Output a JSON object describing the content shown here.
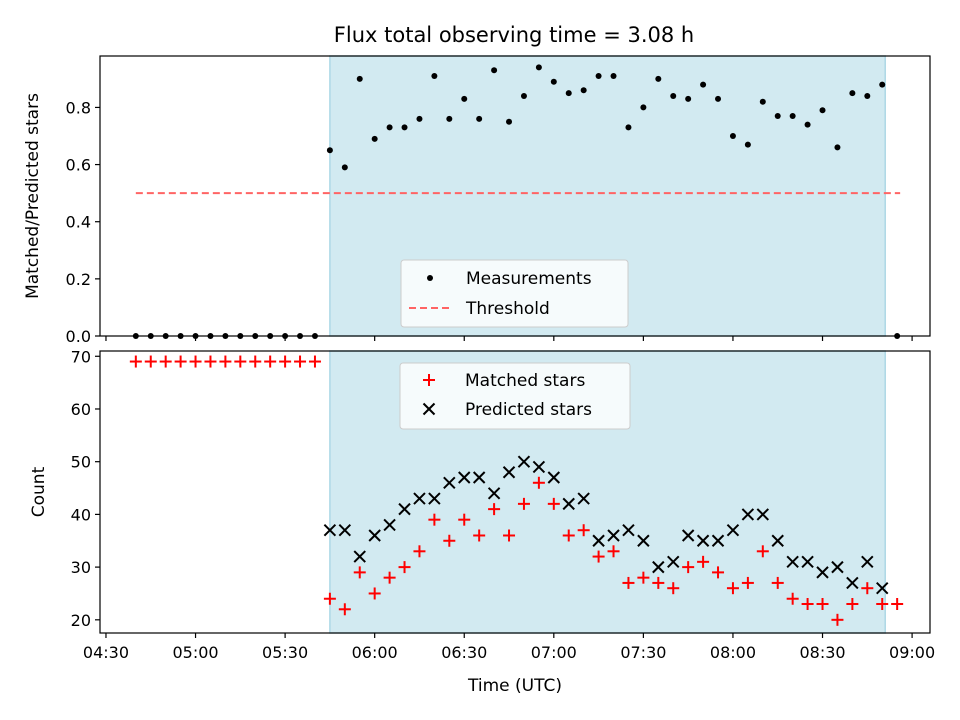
{
  "title": "Flux total observing time = 3.08 h",
  "colors": {
    "band": "#add8e6",
    "measurements": "#000000",
    "threshold": "#ff6464",
    "matched": "#ff0000",
    "predicted": "#000000"
  },
  "chart_data": [
    {
      "type": "scatter",
      "ylabel": "Matched/Predicted stars",
      "ylim": [
        0,
        0.98
      ],
      "yticks": [
        "0.0",
        "0.2",
        "0.4",
        "0.6",
        "0.8"
      ],
      "ytick_values": [
        0,
        0.2,
        0.4,
        0.6,
        0.8
      ],
      "xlim": [
        "04:28",
        "09:06"
      ],
      "highlight_band": [
        "05:45",
        "08:51"
      ],
      "legend": {
        "placement": "lower center",
        "entries": [
          "Measurements",
          "Threshold"
        ]
      },
      "threshold": {
        "name": "Threshold",
        "y": 0.5,
        "x_range": [
          "04:40",
          "08:56"
        ],
        "style": "dashed"
      },
      "series": [
        {
          "name": "Measurements",
          "marker": "dot",
          "x": [
            "04:40",
            "04:45",
            "04:50",
            "04:55",
            "05:00",
            "05:05",
            "05:10",
            "05:15",
            "05:20",
            "05:25",
            "05:30",
            "05:35",
            "05:40",
            "05:45",
            "05:50",
            "05:55",
            "06:00",
            "06:05",
            "06:10",
            "06:15",
            "06:20",
            "06:25",
            "06:30",
            "06:35",
            "06:40",
            "06:45",
            "06:50",
            "06:55",
            "07:00",
            "07:05",
            "07:10",
            "07:15",
            "07:20",
            "07:25",
            "07:30",
            "07:35",
            "07:40",
            "07:45",
            "07:50",
            "07:55",
            "08:00",
            "08:05",
            "08:10",
            "08:15",
            "08:20",
            "08:25",
            "08:30",
            "08:35",
            "08:40",
            "08:45",
            "08:50",
            "08:55"
          ],
          "values": [
            0,
            0,
            0,
            0,
            0,
            0,
            0,
            0,
            0,
            0,
            0,
            0,
            0,
            0.65,
            0.59,
            0.9,
            0.69,
            0.73,
            0.73,
            0.76,
            0.91,
            0.76,
            0.83,
            0.76,
            0.93,
            0.75,
            0.84,
            0.94,
            0.89,
            0.85,
            0.86,
            0.91,
            0.91,
            0.73,
            0.8,
            0.9,
            0.84,
            0.83,
            0.88,
            0.83,
            0.7,
            0.67,
            0.82,
            0.77,
            0.77,
            0.74,
            0.79,
            0.66,
            0.85,
            0.84,
            0.88,
            0
          ]
        }
      ]
    },
    {
      "type": "scatter",
      "xlabel": "Time (UTC)",
      "ylabel": "Count",
      "ylim": [
        17.5,
        71
      ],
      "yticks": [
        "20",
        "30",
        "40",
        "50",
        "60",
        "70"
      ],
      "ytick_values": [
        20,
        30,
        40,
        50,
        60,
        70
      ],
      "xlim": [
        "04:28",
        "09:06"
      ],
      "xticks": [
        "04:30",
        "05:00",
        "05:30",
        "06:00",
        "06:30",
        "07:00",
        "07:30",
        "08:00",
        "08:30",
        "09:00"
      ],
      "highlight_band": [
        "05:45",
        "08:51"
      ],
      "legend": {
        "placement": "upper center",
        "entries": [
          "Matched stars",
          "Predicted stars"
        ]
      },
      "series": [
        {
          "name": "Matched stars",
          "marker": "plus",
          "x": [
            "04:40",
            "04:45",
            "04:50",
            "04:55",
            "05:00",
            "05:05",
            "05:10",
            "05:15",
            "05:20",
            "05:25",
            "05:30",
            "05:35",
            "05:40",
            "05:45",
            "05:50",
            "05:55",
            "06:00",
            "06:05",
            "06:10",
            "06:15",
            "06:20",
            "06:25",
            "06:30",
            "06:35",
            "06:40",
            "06:45",
            "06:50",
            "06:55",
            "07:00",
            "07:05",
            "07:10",
            "07:15",
            "07:20",
            "07:25",
            "07:30",
            "07:35",
            "07:40",
            "07:45",
            "07:50",
            "07:55",
            "08:00",
            "08:05",
            "08:10",
            "08:15",
            "08:20",
            "08:25",
            "08:30",
            "08:35",
            "08:40",
            "08:45",
            "08:50",
            "08:55"
          ],
          "values": [
            69,
            69,
            69,
            69,
            69,
            69,
            69,
            69,
            69,
            69,
            69,
            69,
            69,
            24,
            22,
            29,
            25,
            28,
            30,
            33,
            39,
            35,
            39,
            36,
            41,
            36,
            42,
            46,
            42,
            36,
            37,
            32,
            33,
            27,
            28,
            27,
            26,
            30,
            31,
            29,
            26,
            27,
            33,
            27,
            24,
            23,
            23,
            20,
            23,
            26,
            23,
            23
          ]
        },
        {
          "name": "Predicted stars",
          "marker": "x",
          "x": [
            "05:45",
            "05:50",
            "05:55",
            "06:00",
            "06:05",
            "06:10",
            "06:15",
            "06:20",
            "06:25",
            "06:30",
            "06:35",
            "06:40",
            "06:45",
            "06:50",
            "06:55",
            "07:00",
            "07:05",
            "07:10",
            "07:15",
            "07:20",
            "07:25",
            "07:30",
            "07:35",
            "07:40",
            "07:45",
            "07:50",
            "07:55",
            "08:00",
            "08:05",
            "08:10",
            "08:15",
            "08:20",
            "08:25",
            "08:30",
            "08:35",
            "08:40",
            "08:45",
            "08:50"
          ],
          "values": [
            37,
            37,
            32,
            36,
            38,
            41,
            43,
            43,
            46,
            47,
            47,
            44,
            48,
            50,
            49,
            47,
            42,
            43,
            35,
            36,
            37,
            35,
            30,
            31,
            36,
            35,
            35,
            37,
            40,
            40,
            35,
            31,
            31,
            29,
            30,
            27,
            31,
            26
          ]
        }
      ]
    }
  ]
}
